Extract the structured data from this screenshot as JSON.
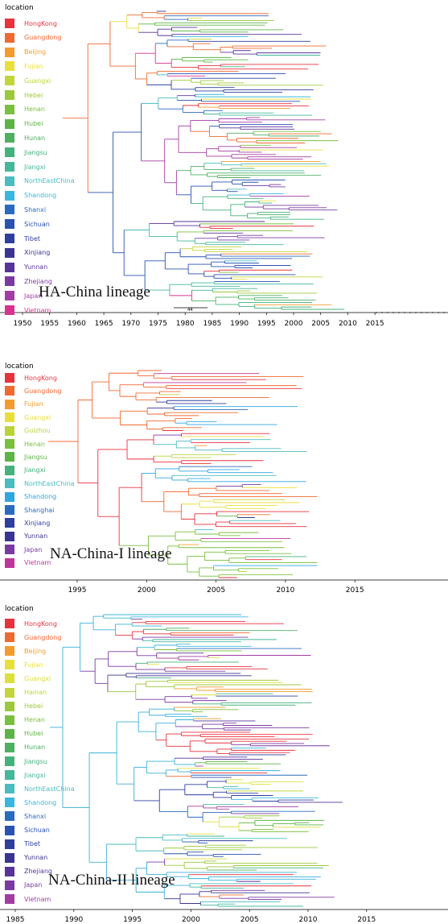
{
  "panels": [
    {
      "legend_title": "location",
      "lineage_label": "HA-China lineage",
      "scale_label": "44",
      "axis_ticks": [
        "1950",
        "1955",
        "1960",
        "1965",
        "1970",
        "1975",
        "1980",
        "1985",
        "1990",
        "1995",
        "2000",
        "2005",
        "2010",
        "2015"
      ],
      "legend": [
        {
          "name": "HongKong",
          "color": "#e8323e"
        },
        {
          "name": "Guangdong",
          "color": "#ef6a30"
        },
        {
          "name": "Beijing",
          "color": "#f39c2b"
        },
        {
          "name": "Fujian",
          "color": "#e9df3b"
        },
        {
          "name": "Guangxi",
          "color": "#c2d63a"
        },
        {
          "name": "Hebei",
          "color": "#9cc93c"
        },
        {
          "name": "Henan",
          "color": "#7bbf3e"
        },
        {
          "name": "Hubei",
          "color": "#5db446"
        },
        {
          "name": "Hunan",
          "color": "#4faf63"
        },
        {
          "name": "Jiangsu",
          "color": "#45b27d"
        },
        {
          "name": "Jiangxi",
          "color": "#45b79b"
        },
        {
          "name": "NorthEastChina",
          "color": "#4bbcc0"
        },
        {
          "name": "Shandong",
          "color": "#3ab7e0"
        },
        {
          "name": "Shanxi",
          "color": "#2b6bbf"
        },
        {
          "name": "Sichuan",
          "color": "#2a52b2"
        },
        {
          "name": "Tibet",
          "color": "#2e3f9e"
        },
        {
          "name": "Xinjiang",
          "color": "#3a3592"
        },
        {
          "name": "Yunnan",
          "color": "#58339a"
        },
        {
          "name": "Zhejiang",
          "color": "#7a3aa2"
        },
        {
          "name": "Japan",
          "color": "#a23ea3"
        },
        {
          "name": "Vietnam",
          "color": "#d8338f"
        }
      ]
    },
    {
      "legend_title": "location",
      "lineage_label": "NA-China-I lineage",
      "axis_ticks": [
        "1995",
        "2000",
        "2005",
        "2010",
        "2015"
      ],
      "legend": [
        {
          "name": "HongKong",
          "color": "#e8323e"
        },
        {
          "name": "Guangdong",
          "color": "#ef6a30"
        },
        {
          "name": "Fujian",
          "color": "#f39c2b"
        },
        {
          "name": "Guangxi",
          "color": "#e9df3b"
        },
        {
          "name": "Guizhou",
          "color": "#b9d43a"
        },
        {
          "name": "Henan",
          "color": "#7bbf3e"
        },
        {
          "name": "Jiangsu",
          "color": "#5db446"
        },
        {
          "name": "Jiangxi",
          "color": "#45b27d"
        },
        {
          "name": "NorthEastChina",
          "color": "#4bbcc0"
        },
        {
          "name": "Shandong",
          "color": "#2ea7e0"
        },
        {
          "name": "Shanghai",
          "color": "#2b6bbf"
        },
        {
          "name": "Xinjiang",
          "color": "#2e3f9e"
        },
        {
          "name": "Yunnan",
          "color": "#3a3592"
        },
        {
          "name": "Japan",
          "color": "#7a3aa2"
        },
        {
          "name": "Vietnam",
          "color": "#c0359b"
        }
      ]
    },
    {
      "legend_title": "location",
      "lineage_label": "NA-China-II lineage",
      "axis_ticks": [
        "1985",
        "1990",
        "1995",
        "2000",
        "2005",
        "2010",
        "2015"
      ],
      "legend": [
        {
          "name": "HongKong",
          "color": "#e8323e"
        },
        {
          "name": "Guangdong",
          "color": "#ef6a30"
        },
        {
          "name": "Beijing",
          "color": "#f39c2b"
        },
        {
          "name": "Fujian",
          "color": "#e9df3b"
        },
        {
          "name": "Guangxi",
          "color": "#dde03c"
        },
        {
          "name": "Hainan",
          "color": "#c2d63a"
        },
        {
          "name": "Hebei",
          "color": "#9cc93c"
        },
        {
          "name": "Henan",
          "color": "#7bbf3e"
        },
        {
          "name": "Hubei",
          "color": "#5db446"
        },
        {
          "name": "Hunan",
          "color": "#4faf63"
        },
        {
          "name": "Jiangsu",
          "color": "#45b27d"
        },
        {
          "name": "Jiangxi",
          "color": "#45b79b"
        },
        {
          "name": "NorthEastChina",
          "color": "#4bbcc0"
        },
        {
          "name": "Shandong",
          "color": "#3ab7e0"
        },
        {
          "name": "Shanxi",
          "color": "#2b6bbf"
        },
        {
          "name": "Sichuan",
          "color": "#2a52b2"
        },
        {
          "name": "Tibet",
          "color": "#2e3f9e"
        },
        {
          "name": "Yunnan",
          "color": "#3a3592"
        },
        {
          "name": "Zhejiang",
          "color": "#58339a"
        },
        {
          "name": "Japan",
          "color": "#7a3aa2"
        },
        {
          "name": "Vietnam",
          "color": "#a23ea3"
        }
      ]
    }
  ]
}
